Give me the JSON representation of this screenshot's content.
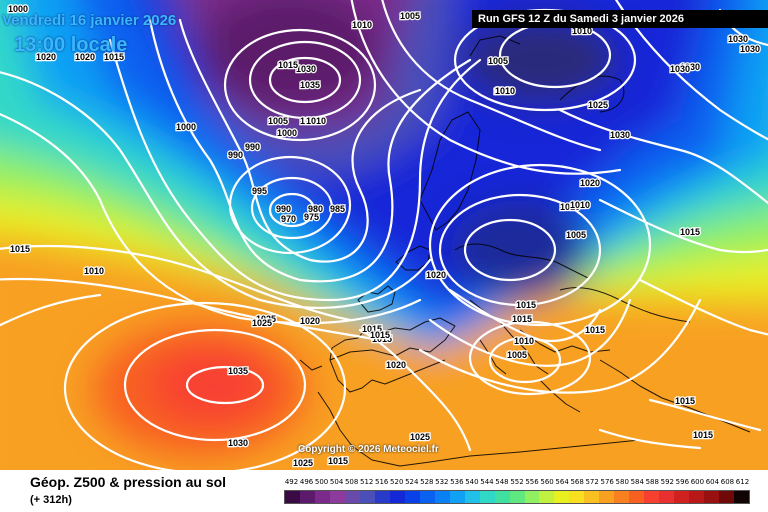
{
  "header": {
    "date_line": "Vendredi 16 janvier 2026",
    "time_line": "13:00 locale",
    "run_info": "Run GFS 12 Z du Samedi 3 janvier 2026"
  },
  "copyright": "Copyright © 2026 Meteociel.fr",
  "footer": {
    "title": "Géop. Z500 & pression au sol",
    "subtitle": "(+ 312h)"
  },
  "legend": {
    "labels": [
      "492",
      "496",
      "500",
      "504",
      "508",
      "512",
      "516",
      "520",
      "524",
      "528",
      "532",
      "536",
      "540",
      "544",
      "548",
      "552",
      "556",
      "560",
      "564",
      "568",
      "572",
      "576",
      "580",
      "584",
      "588",
      "592",
      "596",
      "600",
      "604",
      "608",
      "612"
    ],
    "colors": [
      "#3a0a45",
      "#5b1a6b",
      "#7a2a8a",
      "#8c3a9c",
      "#6a4aa8",
      "#4a50b8",
      "#2a3ac8",
      "#1428d8",
      "#0a40e8",
      "#0a60f0",
      "#0a80f4",
      "#10a0f4",
      "#20c0e8",
      "#30d8c8",
      "#40e0a0",
      "#60e880",
      "#90f060",
      "#c0f040",
      "#e8f020",
      "#f8e020",
      "#f8c020",
      "#f8a020",
      "#f88020",
      "#f86020",
      "#f84030",
      "#e83030",
      "#d02020",
      "#b81818",
      "#981010",
      "#700808",
      "#100404"
    ]
  },
  "pressure_labels": [
    "1000",
    "1005",
    "1010",
    "1010",
    "1005",
    "1030",
    "1030",
    "1020",
    "1020",
    "1015",
    "1015",
    "1035",
    "1030",
    "1030",
    "1025",
    "1010",
    "1000",
    "990",
    "990",
    "1005",
    "1000",
    "1010",
    "995",
    "990",
    "980",
    "975",
    "985",
    "970",
    "1010",
    "1015",
    "1010",
    "1015",
    "1010",
    "1025",
    "1020",
    "1015",
    "1015",
    "1015",
    "1015",
    "1020",
    "1020",
    "1015",
    "1010",
    "1005",
    "1015",
    "1015",
    "1035",
    "1030",
    "1025",
    "1025",
    "1015",
    "1015",
    "1030",
    "1030",
    "1020",
    "1010",
    "1005",
    "1010",
    "1025",
    "1030"
  ],
  "icons": {
    "map": "weather-map"
  }
}
